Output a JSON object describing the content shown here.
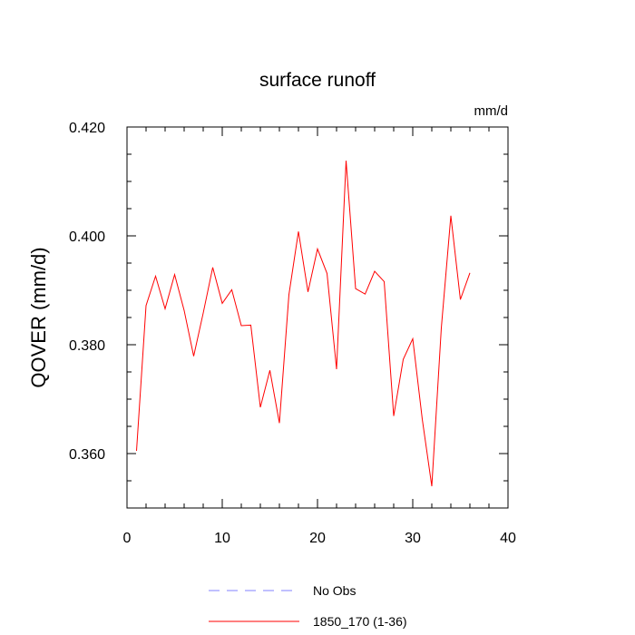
{
  "chart_data": {
    "type": "line",
    "title": "surface runoff",
    "units_label": "mm/d",
    "ylabel": "QOVER  (mm/d)",
    "xlabel": "",
    "xlim": [
      0,
      40
    ],
    "ylim": [
      0.35,
      0.42
    ],
    "x_ticks": [
      0,
      10,
      20,
      30,
      40
    ],
    "x_tick_labels": [
      "0",
      "10",
      "20",
      "30",
      "40"
    ],
    "y_ticks": [
      0.36,
      0.38,
      0.4,
      0.42
    ],
    "y_tick_labels": [
      "0.360",
      "0.380",
      "0.400",
      "0.420"
    ],
    "grid": false,
    "legend_position": "bottom",
    "legend": [
      {
        "label": "No Obs",
        "color": "#8080ff",
        "style": "dashed"
      },
      {
        "label": "1850_170 (1-36)",
        "color": "#ff0000",
        "style": "solid"
      }
    ],
    "series": [
      {
        "name": "1850_170 (1-36)",
        "color": "#ff0000",
        "x": [
          1,
          2,
          3,
          4,
          5,
          6,
          7,
          8,
          9,
          10,
          11,
          12,
          13,
          14,
          15,
          16,
          17,
          18,
          19,
          20,
          21,
          22,
          23,
          24,
          25,
          26,
          27,
          28,
          29,
          30,
          31,
          32,
          33,
          34,
          35,
          36
        ],
        "values": [
          0.3605,
          0.3872,
          0.3926,
          0.3866,
          0.3929,
          0.3863,
          0.3779,
          0.3858,
          0.3942,
          0.3876,
          0.3901,
          0.3835,
          0.3836,
          0.3685,
          0.3753,
          0.3656,
          0.3892,
          0.4008,
          0.3897,
          0.3976,
          0.3931,
          0.3755,
          0.4138,
          0.3903,
          0.3893,
          0.3935,
          0.3916,
          0.3669,
          0.3773,
          0.3811,
          0.3663,
          0.354,
          0.3831,
          0.4037,
          0.3883,
          0.3932
        ]
      }
    ]
  }
}
